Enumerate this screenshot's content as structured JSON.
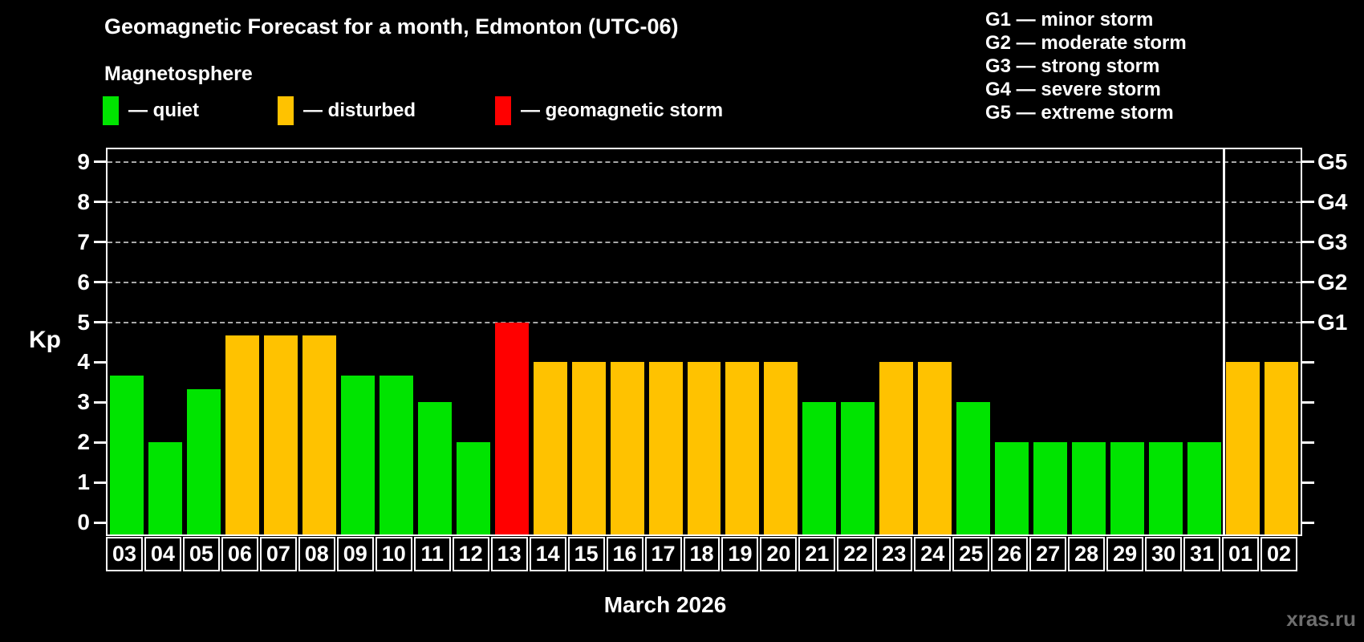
{
  "header": {
    "title": "Geomagnetic Forecast for a month, Edmonton (UTC-06)",
    "subtitle": "Magnetosphere"
  },
  "legend": {
    "items": [
      {
        "key": "quiet",
        "label": "— quiet",
        "color": "#00e400"
      },
      {
        "key": "disturbed",
        "label": "— disturbed",
        "color": "#ffc200"
      },
      {
        "key": "storm",
        "label": "— geomagnetic storm",
        "color": "#ff0000"
      }
    ],
    "positions_x": [
      128,
      346,
      617
    ]
  },
  "g_legend": [
    "G1 — minor storm",
    "G2 — moderate storm",
    "G3 — strong storm",
    "G4 — severe storm",
    "G5 — extreme storm"
  ],
  "axis": {
    "y_label": "Kp",
    "x_title": "March 2026"
  },
  "watermark": "xras.ru",
  "chart_data": {
    "type": "bar",
    "title": "Geomagnetic Forecast for a month, Edmonton (UTC-06)",
    "subtitle": "Magnetosphere",
    "xlabel": "March 2026",
    "ylabel": "Kp",
    "ylim": [
      0,
      9
    ],
    "y_ticks": [
      0,
      1,
      2,
      3,
      4,
      5,
      6,
      7,
      8,
      9
    ],
    "categories": [
      "03",
      "04",
      "05",
      "06",
      "07",
      "08",
      "09",
      "10",
      "11",
      "12",
      "13",
      "14",
      "15",
      "16",
      "17",
      "18",
      "19",
      "20",
      "21",
      "22",
      "23",
      "24",
      "25",
      "26",
      "27",
      "28",
      "29",
      "30",
      "31",
      "01",
      "02"
    ],
    "values": [
      3.67,
      2,
      3.33,
      4.67,
      4.67,
      4.67,
      3.67,
      3.67,
      3,
      2,
      5,
      4,
      4,
      4,
      4,
      4,
      4,
      4,
      3,
      3,
      4,
      4,
      3,
      2,
      2,
      2,
      2,
      2,
      2,
      4,
      4
    ],
    "statuses": [
      "quiet",
      "quiet",
      "quiet",
      "disturbed",
      "disturbed",
      "disturbed",
      "quiet",
      "quiet",
      "quiet",
      "quiet",
      "storm",
      "disturbed",
      "disturbed",
      "disturbed",
      "disturbed",
      "disturbed",
      "disturbed",
      "disturbed",
      "quiet",
      "quiet",
      "disturbed",
      "disturbed",
      "quiet",
      "quiet",
      "quiet",
      "quiet",
      "quiet",
      "quiet",
      "quiet",
      "disturbed",
      "disturbed"
    ],
    "colors": {
      "quiet": "#00e400",
      "disturbed": "#ffc200",
      "storm": "#ff0000"
    },
    "g_levels": [
      {
        "label": "G1",
        "kp": 5
      },
      {
        "label": "G2",
        "kp": 6
      },
      {
        "label": "G3",
        "kp": 7
      },
      {
        "label": "G4",
        "kp": 8
      },
      {
        "label": "G5",
        "kp": 9
      }
    ],
    "month_boundary_before_index": 29,
    "grid": "dashed-at-g-levels",
    "legend_position": "top"
  }
}
